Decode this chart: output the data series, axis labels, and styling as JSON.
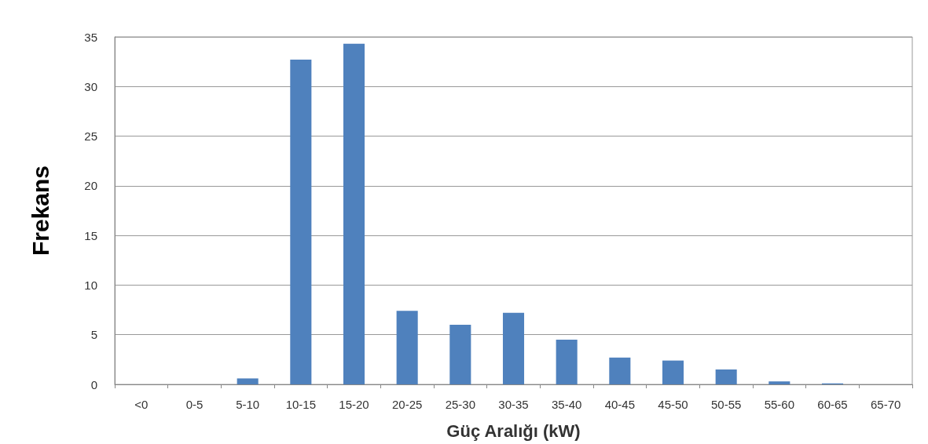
{
  "chart_data": {
    "type": "bar",
    "xlabel": "Güç Aralığı (kW)",
    "ylabel": "Frekans",
    "categories": [
      "<0",
      "0-5",
      "5-10",
      "10-15",
      "15-20",
      "20-25",
      "25-30",
      "30-35",
      "35-40",
      "40-45",
      "45-50",
      "50-55",
      "55-60",
      "60-65",
      "65-70"
    ],
    "values": [
      0,
      0,
      0.6,
      32.7,
      34.3,
      7.4,
      6.0,
      7.2,
      4.5,
      2.7,
      2.4,
      1.5,
      0.3,
      0.1,
      0
    ],
    "color": "#4f81bd",
    "ylim": [
      0,
      35
    ],
    "yticks": [
      0,
      5,
      10,
      15,
      20,
      25,
      30,
      35
    ],
    "grid": "y"
  }
}
